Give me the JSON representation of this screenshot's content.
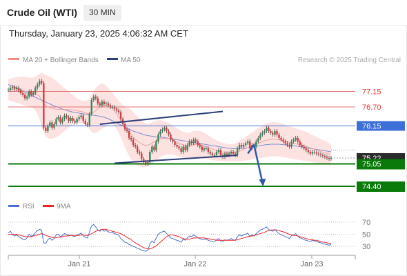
{
  "header": {
    "title": "Crude Oil (WTI)",
    "timeframe": "30 MIN",
    "datetime": "Thursday, January 23, 2025 4:06:32 AM CET"
  },
  "legend": {
    "items": [
      {
        "label": "MA 20 + Bollinger Bands",
        "color": "#f28b82"
      },
      {
        "label": "MA 50",
        "color": "#2a3f7a"
      }
    ],
    "copyright": "Research © 2025 Trading Central"
  },
  "rsi_legend": {
    "items": [
      {
        "label": "RSI",
        "color": "#4a6fd1"
      },
      {
        "label": "9MA",
        "color": "#e8262a"
      }
    ]
  },
  "chart_data": [
    {
      "type": "line",
      "title": "Crude Oil (WTI)",
      "xlabel": "",
      "ylabel": "",
      "x_tick_labels": [
        "Jan 21",
        "Jan 22",
        "Jan 23"
      ],
      "ylim": [
        74.0,
        77.8
      ],
      "levels": [
        {
          "value": 77.15,
          "label": "77.15",
          "style": "resistance",
          "color": "#e57373"
        },
        {
          "value": 76.7,
          "label": "76.70",
          "style": "resistance",
          "color": "#e57373"
        },
        {
          "value": 76.15,
          "label": "76.15",
          "style": "pivot",
          "color": "#3d6fd8"
        },
        {
          "value": 75.22,
          "label": "75.22",
          "style": "current",
          "color": "#2b2b2b"
        },
        {
          "value": 75.05,
          "label": "75.05",
          "style": "support",
          "color": "#0a7a0a"
        },
        {
          "value": 74.4,
          "label": "74.40",
          "style": "support",
          "color": "#0a7a0a"
        }
      ],
      "close": [
        77.2,
        77.25,
        77.28,
        77.22,
        77.25,
        77.18,
        77.1,
        77.05,
        76.95,
        77.0,
        77.15,
        77.05,
        77.1,
        77.25,
        77.35,
        77.45,
        77.4,
        76.1,
        76.0,
        76.15,
        76.25,
        76.1,
        76.2,
        76.35,
        76.4,
        76.25,
        76.35,
        76.45,
        76.4,
        76.3,
        76.38,
        76.3,
        76.25,
        76.35,
        76.4,
        76.45,
        76.3,
        76.2,
        76.18,
        76.5,
        76.9,
        77.0,
        76.95,
        76.8,
        76.75,
        76.85,
        76.78,
        76.8,
        76.75,
        76.7,
        76.7,
        76.65,
        76.6,
        76.55,
        76.35,
        76.2,
        76.05,
        76.0,
        75.8,
        75.75,
        75.6,
        75.55,
        75.4,
        75.35,
        75.2,
        75.1,
        75.05,
        75.1,
        75.4,
        75.55,
        75.45,
        75.7,
        75.9,
        76.0,
        76.05,
        76.1,
        76.0,
        75.9,
        75.75,
        75.7,
        75.6,
        75.55,
        75.5,
        75.4,
        75.55,
        75.45,
        75.6,
        75.7,
        75.65,
        75.75,
        75.7,
        75.6,
        75.55,
        75.45,
        75.5,
        75.5,
        75.4,
        75.35,
        75.3,
        75.3,
        75.4,
        75.45,
        75.3,
        75.25,
        75.35,
        75.3,
        75.35,
        75.4,
        75.35,
        75.3,
        75.5,
        75.6,
        75.55,
        75.6,
        75.65,
        75.7,
        75.5,
        75.6,
        75.55,
        75.7,
        75.8,
        75.9,
        75.95,
        76.0,
        76.1,
        76.0,
        75.95,
        75.9,
        76.0,
        75.9,
        75.8,
        75.75,
        75.7,
        75.65,
        75.6,
        75.55,
        75.7,
        75.75,
        75.8,
        75.7,
        75.6,
        75.55,
        75.5,
        75.45,
        75.4,
        75.35,
        75.4,
        75.38,
        75.35,
        75.33,
        75.3,
        75.28,
        75.25,
        75.22,
        75.2,
        75.22
      ],
      "ma50": [
        77.35,
        77.33,
        77.31,
        77.28,
        77.26,
        77.23,
        77.2,
        77.17,
        77.14,
        77.1,
        77.07,
        77.04,
        77.01,
        76.98,
        76.95,
        76.92,
        76.9,
        76.87,
        76.84,
        76.81,
        76.79,
        76.76,
        76.73,
        76.71,
        76.69,
        76.66,
        76.64,
        76.62,
        76.6,
        76.58,
        76.57,
        76.55,
        76.54,
        76.53,
        76.52,
        76.51,
        76.5,
        76.49,
        76.48,
        76.47,
        76.47,
        76.46,
        76.45,
        76.44,
        76.43,
        76.42,
        76.4,
        76.38,
        76.36,
        76.33,
        76.3,
        76.27,
        76.24,
        76.21,
        76.18,
        76.15,
        76.12,
        76.09,
        76.06,
        76.03,
        76.0,
        75.98,
        75.96,
        75.94,
        75.92,
        75.9,
        75.88,
        75.87,
        75.86,
        75.85,
        75.84,
        75.83,
        75.83,
        75.82,
        75.82,
        75.81,
        75.8,
        75.79,
        75.78,
        75.77,
        75.76,
        75.75,
        75.74,
        75.73,
        75.72,
        75.71,
        75.7,
        75.69,
        75.68,
        75.67,
        75.66,
        75.65,
        75.64,
        75.63,
        75.62,
        75.61,
        75.6,
        75.59,
        75.58,
        75.57,
        75.56,
        75.55,
        75.54,
        75.53,
        75.52,
        75.51,
        75.5,
        75.5,
        75.49,
        75.49,
        75.49,
        75.49,
        75.5,
        75.5,
        75.51,
        75.52,
        75.53,
        75.54,
        75.55,
        75.56,
        75.57,
        75.58,
        75.59,
        75.6,
        75.61,
        75.61,
        75.62,
        75.62,
        75.62,
        75.62,
        75.62,
        75.61,
        75.61,
        75.6,
        75.59,
        75.59,
        75.58,
        75.57,
        75.57,
        75.56,
        75.55,
        75.54,
        75.53,
        75.52,
        75.51,
        75.5,
        75.49,
        75.48,
        75.47,
        75.46,
        75.45,
        75.44,
        75.43,
        75.42,
        75.41,
        75.4
      ],
      "bb_upper": [
        77.5,
        77.52,
        77.54,
        77.55,
        77.56,
        77.57,
        77.58,
        77.58,
        77.57,
        77.56,
        77.55,
        77.55,
        77.56,
        77.58,
        77.62,
        77.66,
        77.7,
        77.66,
        77.62,
        77.6,
        77.58,
        77.55,
        77.5,
        77.45,
        77.4,
        77.35,
        77.3,
        77.25,
        77.2,
        77.15,
        77.1,
        77.05,
        77.0,
        76.95,
        76.92,
        76.9,
        76.88,
        76.88,
        76.9,
        76.95,
        77.05,
        77.15,
        77.25,
        77.32,
        77.36,
        77.38,
        77.36,
        77.32,
        77.25,
        77.18,
        77.1,
        77.02,
        76.95,
        76.88,
        76.82,
        76.76,
        76.72,
        76.68,
        76.65,
        76.62,
        76.55,
        76.48,
        76.42,
        76.36,
        76.3,
        76.25,
        76.22,
        76.2,
        76.22,
        76.25,
        76.28,
        76.3,
        76.32,
        76.32,
        76.3,
        76.28,
        76.26,
        76.24,
        76.2,
        76.16,
        76.12,
        76.08,
        76.04,
        76.0,
        75.98,
        75.96,
        75.95,
        75.96,
        75.98,
        76.0,
        76.01,
        76.01,
        76.0,
        75.98,
        75.95,
        75.92,
        75.88,
        75.84,
        75.8,
        75.76,
        75.73,
        75.7,
        75.68,
        75.66,
        75.64,
        75.63,
        75.62,
        75.62,
        75.63,
        75.64,
        75.68,
        75.72,
        75.76,
        75.8,
        75.84,
        75.88,
        75.92,
        75.96,
        76.0,
        76.04,
        76.08,
        76.12,
        76.16,
        76.2,
        76.22,
        76.24,
        76.25,
        76.26,
        76.26,
        76.25,
        76.24,
        76.22,
        76.2,
        76.18,
        76.16,
        76.14,
        76.12,
        76.1,
        76.08,
        76.06,
        76.04,
        76.02,
        76.0,
        75.98,
        75.95,
        75.92,
        75.89,
        75.86,
        75.83,
        75.8,
        75.77,
        75.74,
        75.71,
        75.68,
        75.65,
        75.62
      ],
      "bb_lower": [
        76.9,
        76.88,
        76.86,
        76.84,
        76.82,
        76.8,
        76.78,
        76.76,
        76.74,
        76.72,
        76.7,
        76.68,
        76.66,
        76.6,
        76.5,
        76.35,
        76.1,
        75.95,
        75.85,
        75.8,
        75.78,
        75.78,
        75.8,
        75.82,
        75.86,
        75.9,
        75.95,
        76.0,
        76.05,
        76.1,
        76.14,
        76.18,
        76.2,
        76.22,
        76.24,
        76.24,
        76.22,
        76.18,
        76.12,
        76.05,
        75.98,
        75.95,
        75.95,
        75.98,
        76.02,
        76.06,
        76.1,
        76.14,
        76.18,
        76.2,
        76.2,
        76.15,
        76.05,
        75.95,
        75.82,
        75.68,
        75.54,
        75.4,
        75.28,
        75.18,
        75.1,
        75.04,
        75.0,
        74.98,
        74.96,
        74.95,
        74.96,
        74.98,
        75.02,
        75.06,
        75.1,
        75.15,
        75.2,
        75.24,
        75.28,
        75.3,
        75.32,
        75.33,
        75.33,
        75.32,
        75.3,
        75.28,
        75.26,
        75.24,
        75.22,
        75.21,
        75.2,
        75.2,
        75.2,
        75.21,
        75.22,
        75.22,
        75.22,
        75.21,
        75.2,
        75.19,
        75.18,
        75.17,
        75.16,
        75.15,
        75.14,
        75.14,
        75.13,
        75.13,
        75.13,
        75.12,
        75.12,
        75.12,
        75.12,
        75.12,
        75.12,
        75.12,
        75.13,
        75.14,
        75.15,
        75.16,
        75.17,
        75.18,
        75.19,
        75.2,
        75.21,
        75.22,
        75.23,
        75.24,
        75.25,
        75.26,
        75.27,
        75.27,
        75.27,
        75.27,
        75.26,
        75.25,
        75.24,
        75.23,
        75.22,
        75.21,
        75.2,
        75.19,
        75.18,
        75.17,
        75.16,
        75.15,
        75.14,
        75.13,
        75.12,
        75.11,
        75.1,
        75.09,
        75.08,
        75.07,
        75.06,
        75.05,
        75.04,
        75.03,
        75.02,
        75.01,
        75.0,
        74.99
      ],
      "channel": {
        "upper": {
          "from": [
            44,
            76.2
          ],
          "to": [
            103,
            76.57
          ]
        },
        "lower": {
          "from": [
            51,
            75.07
          ],
          "to": [
            110,
            75.3
          ]
        }
      },
      "projection": [
        [
          115,
          75.35
        ],
        [
          118,
          75.6
        ],
        [
          122,
          74.4
        ]
      ]
    },
    {
      "type": "line",
      "title": "RSI",
      "ylim": [
        20,
        80
      ],
      "y_ticks": [
        70,
        50,
        30
      ],
      "series": [
        {
          "name": "RSI",
          "color": "#4a6fd1",
          "values": [
            52,
            55,
            50,
            47,
            49,
            46,
            44,
            42,
            41,
            44,
            50,
            47,
            48,
            53,
            56,
            58,
            57,
            36,
            35,
            41,
            44,
            40,
            43,
            49,
            50,
            46,
            48,
            51,
            50,
            47,
            49,
            47,
            46,
            49,
            50,
            52,
            47,
            45,
            44,
            54,
            64,
            66,
            62,
            57,
            55,
            58,
            55,
            56,
            54,
            53,
            53,
            51,
            50,
            49,
            43,
            40,
            37,
            36,
            33,
            32,
            30,
            29,
            27,
            26,
            24,
            23,
            22,
            24,
            34,
            39,
            36,
            44,
            50,
            53,
            54,
            55,
            51,
            48,
            44,
            43,
            41,
            40,
            39,
            37,
            42,
            40,
            44,
            47,
            46,
            49,
            47,
            44,
            43,
            41,
            42,
            42,
            40,
            39,
            38,
            38,
            41,
            43,
            39,
            38,
            41,
            40,
            41,
            43,
            41,
            40,
            46,
            49,
            47,
            49,
            50,
            52,
            46,
            49,
            47,
            51,
            54,
            57,
            58,
            60,
            62,
            58,
            56,
            55,
            58,
            54,
            51,
            49,
            48,
            46,
            45,
            43,
            48,
            49,
            51,
            47,
            44,
            43,
            41,
            40,
            39,
            38,
            40,
            39,
            38,
            37,
            36,
            35,
            34,
            33,
            32,
            33
          ]
        },
        {
          "name": "9MA",
          "color": "#e8262a",
          "values": [
            50,
            50,
            50,
            50,
            50,
            49,
            48,
            47,
            46,
            46,
            46,
            46,
            47,
            48,
            49,
            50,
            51,
            50,
            48,
            47,
            46,
            45,
            44,
            44,
            45,
            45,
            46,
            47,
            47,
            48,
            48,
            48,
            48,
            48,
            48,
            49,
            49,
            48,
            48,
            49,
            51,
            53,
            55,
            56,
            57,
            58,
            58,
            58,
            57,
            56,
            55,
            54,
            53,
            52,
            51,
            49,
            47,
            45,
            43,
            41,
            38,
            36,
            34,
            32,
            30,
            28,
            27,
            26,
            26,
            27,
            29,
            31,
            34,
            37,
            40,
            43,
            46,
            48,
            49,
            49,
            48,
            47,
            46,
            44,
            43,
            42,
            42,
            42,
            43,
            44,
            44,
            44,
            44,
            44,
            44,
            43,
            43,
            42,
            41,
            41,
            40,
            40,
            40,
            40,
            40,
            40,
            40,
            40,
            40,
            40,
            41,
            42,
            43,
            44,
            45,
            46,
            47,
            47,
            48,
            49,
            50,
            51,
            52,
            53,
            55,
            56,
            57,
            57,
            57,
            57,
            56,
            55,
            54,
            53,
            51,
            50,
            49,
            48,
            48,
            47,
            46,
            45,
            44,
            43,
            42,
            41,
            41,
            40,
            40,
            39,
            38,
            37,
            37,
            36,
            35,
            35
          ]
        }
      ]
    }
  ]
}
